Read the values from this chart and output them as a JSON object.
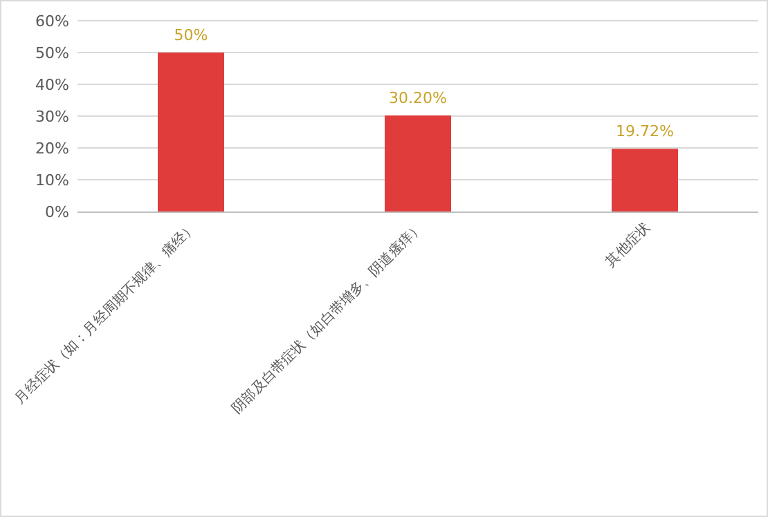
{
  "chart_data": {
    "type": "bar",
    "categories": [
      "月经症状（如：月经周期不规律、痛经）",
      "阴部及白带症状（如白带增多、阴道瘙痒）",
      "其他症状"
    ],
    "values": [
      50,
      30.2,
      19.72
    ],
    "value_labels": [
      "50%",
      "30.20%",
      "19.72%"
    ],
    "color": "#e03c3c",
    "ylim": [
      0,
      60
    ],
    "yticks": [
      {
        "value": 0,
        "label": "0%"
      },
      {
        "value": 10,
        "label": "10%"
      },
      {
        "value": 20,
        "label": "20%"
      },
      {
        "value": 30,
        "label": "30%"
      },
      {
        "value": 40,
        "label": "40%"
      },
      {
        "value": 50,
        "label": "50%"
      },
      {
        "value": 60,
        "label": "60%"
      }
    ],
    "grid": "y"
  }
}
